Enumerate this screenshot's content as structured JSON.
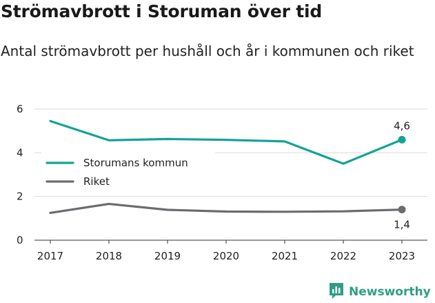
{
  "title": "Strömavbrott i Storuman över tid",
  "subtitle": "Antal strömavbrott per hushåll och år i kommunen och riket",
  "brand": {
    "name": "Newsworthy",
    "color": "#2f9e86",
    "icon": "bar-chart-icon"
  },
  "chart_data": {
    "type": "line",
    "x": [
      "2017",
      "2018",
      "2019",
      "2020",
      "2021",
      "2022",
      "2023"
    ],
    "ylim": [
      0,
      6
    ],
    "yticks": [
      "0",
      "2",
      "4",
      "6"
    ],
    "grid": "horizontal",
    "legend_position": "middle-left",
    "series": [
      {
        "name": "Storumans kommun",
        "color": "#14a394",
        "values": [
          5.45,
          4.57,
          4.63,
          4.59,
          4.52,
          3.5,
          4.6
        ],
        "end_label": "4,6"
      },
      {
        "name": "Riket",
        "color": "#6b6b70",
        "values": [
          1.25,
          1.66,
          1.39,
          1.31,
          1.3,
          1.32,
          1.4
        ],
        "end_label": "1,4"
      }
    ]
  }
}
